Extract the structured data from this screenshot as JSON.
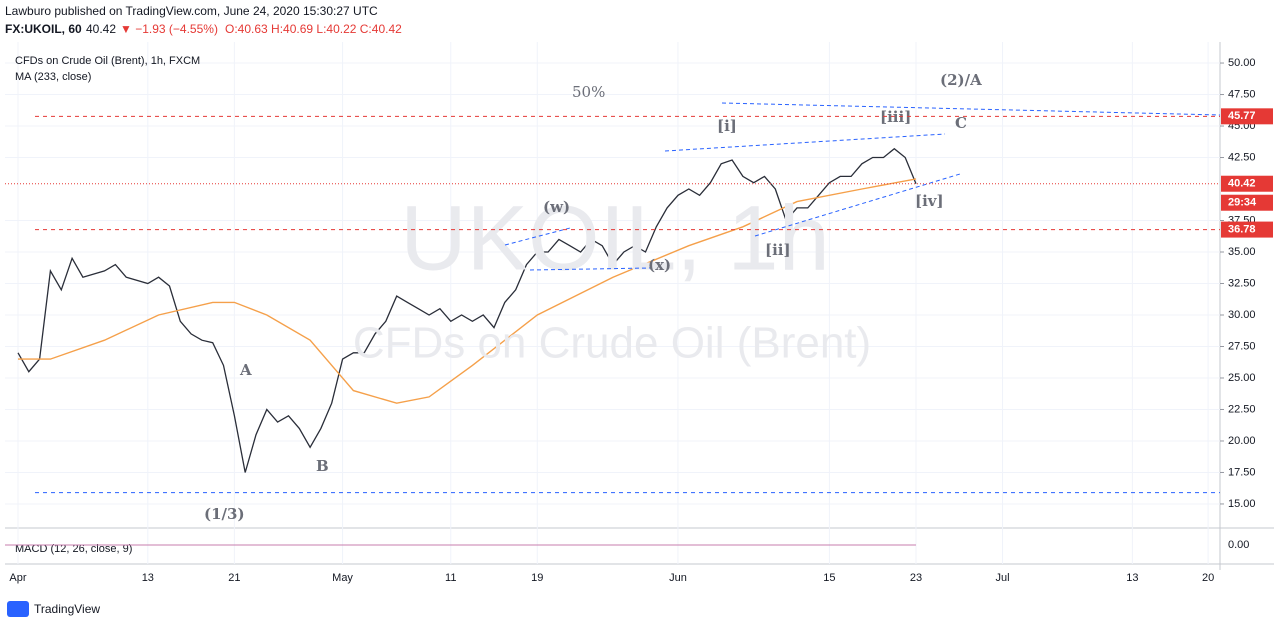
{
  "header": {
    "publisher": "Lawburo published on TradingView.com, June 24, 2020 15:30:27 UTC",
    "symbol": "FX:UKOIL, 60",
    "last": "40.42",
    "change": "▼ −1.93 (−4.55%)",
    "ohlc": "O:40.63 H:40.69 L:40.22 C:40.42"
  },
  "footer": {
    "brand": "TradingView"
  },
  "chart_data": {
    "type": "line",
    "watermark": "UKOIL, 1h",
    "watermark_subtitle": "CFDs on Crude Oil (Brent)",
    "series": [
      {
        "name": "CFDs on Crude Oil (Brent), 1h, FXCM",
        "color": "#2a2e39",
        "x": [
          0,
          1,
          2,
          3,
          4,
          5,
          6,
          8,
          9,
          10,
          12,
          13,
          14,
          15,
          16,
          17,
          18,
          19,
          20,
          21,
          22,
          23,
          24,
          25,
          26,
          27,
          28,
          29,
          30,
          31,
          32,
          33,
          34,
          35,
          36,
          37,
          38,
          39,
          40,
          41,
          42,
          43,
          44,
          45,
          46,
          47,
          48,
          49,
          50,
          51,
          52,
          53,
          54,
          55,
          56,
          57,
          58,
          59,
          60,
          61,
          62,
          63,
          64,
          65,
          66,
          67,
          68,
          69,
          70,
          71,
          72,
          73,
          74,
          75,
          76,
          77,
          78,
          79,
          80,
          81,
          82,
          83
        ],
        "values": [
          27,
          25.5,
          26.5,
          33.5,
          32,
          34.5,
          33,
          33.5,
          34,
          33,
          32.5,
          33,
          32.3,
          29.5,
          28.5,
          28,
          27.8,
          26,
          22,
          17.5,
          20.5,
          22.5,
          21.5,
          22,
          21,
          19.5,
          21,
          23,
          26.5,
          27,
          27,
          28.5,
          29.5,
          31.5,
          31,
          30.5,
          30,
          30.5,
          29.5,
          30,
          29.5,
          30,
          29,
          31,
          32,
          34,
          35,
          35,
          36,
          35.5,
          35,
          36,
          35.5,
          34,
          35,
          35.5,
          35,
          37,
          38.5,
          39.5,
          40,
          39.5,
          40.5,
          42,
          42.3,
          41,
          40.5,
          41,
          40,
          37.5,
          38.5,
          38.5,
          39.5,
          40.5,
          41,
          41,
          42,
          42.5,
          42.5,
          43.2,
          42.5,
          40.42
        ]
      },
      {
        "name": "MA (233, close)",
        "color": "#f5a04a",
        "x": [
          0,
          3,
          8,
          13,
          18,
          20,
          23,
          27,
          31,
          35,
          38,
          42,
          48,
          55,
          62,
          67,
          72,
          78,
          83
        ],
        "values": [
          26.5,
          26.5,
          28,
          30,
          31,
          31,
          30,
          28,
          24,
          23,
          23.5,
          26,
          30,
          33,
          35.5,
          37,
          39,
          40,
          40.8
        ]
      }
    ],
    "levels": [
      {
        "value": 45.77,
        "color": "#e53935",
        "style": "dashed",
        "tag": true
      },
      {
        "value": 40.42,
        "color": "#e53935",
        "style": "dotted",
        "tag": true
      },
      {
        "value": 36.78,
        "color": "#e53935",
        "style": "dashed",
        "tag": true
      },
      {
        "value": 15.9,
        "color": "#2962ff",
        "style": "dashed",
        "tag": false
      }
    ],
    "countdown": "29:34",
    "annotations": [
      "50%",
      "(2)/A",
      "[i]",
      "[iii]",
      "C",
      "[iv]",
      "[ii]",
      "(w)",
      "(x)",
      "A",
      "B",
      "(1/3)"
    ],
    "xlim": [
      -1.2,
      111.1
    ],
    "xticks": [
      {
        "value": 0,
        "label": "Apr"
      },
      {
        "value": 12,
        "label": "13"
      },
      {
        "value": 20,
        "label": "21"
      },
      {
        "value": 30,
        "label": "May"
      },
      {
        "value": 40,
        "label": "11"
      },
      {
        "value": 48,
        "label": "19"
      },
      {
        "value": 61,
        "label": "Jun"
      },
      {
        "value": 75,
        "label": "15"
      },
      {
        "value": 83,
        "label": "23"
      },
      {
        "value": 91,
        "label": "Jul"
      },
      {
        "value": 103,
        "label": "13"
      },
      {
        "value": 110,
        "label": "20"
      }
    ],
    "ylim": [
      13.33,
      51.67
    ],
    "yticks": [
      {
        "value": 15,
        "label": "15.00"
      },
      {
        "value": 17.5,
        "label": "17.50"
      },
      {
        "value": 20,
        "label": "20.00"
      },
      {
        "value": 22.5,
        "label": "22.50"
      },
      {
        "value": 25,
        "label": "25.00"
      },
      {
        "value": 27.5,
        "label": "27.50"
      },
      {
        "value": 30,
        "label": "30.00"
      },
      {
        "value": 32.5,
        "label": "32.50"
      },
      {
        "value": 35,
        "label": "35.00"
      },
      {
        "value": 37.5,
        "label": "37.50"
      },
      {
        "value": 42.5,
        "label": "42.50"
      },
      {
        "value": 45,
        "label": "45.00"
      },
      {
        "value": 47.5,
        "label": "47.50"
      },
      {
        "value": 50,
        "label": "50.00"
      }
    ],
    "grid": true,
    "macd": {
      "title": "MACD (12, 26, close, 9)",
      "ylim": [
        -2,
        2
      ],
      "yticks": [
        {
          "value": 0,
          "label": "0.00"
        }
      ]
    }
  }
}
